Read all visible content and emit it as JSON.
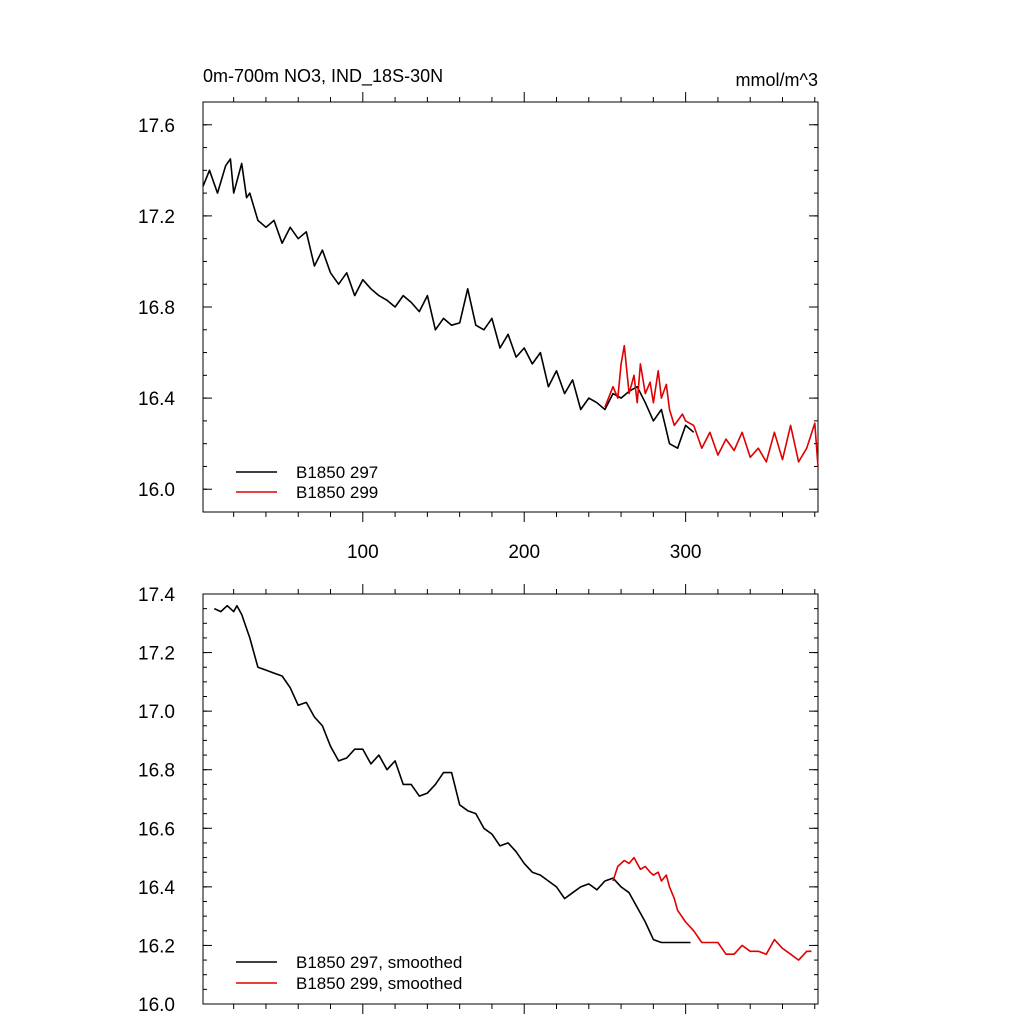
{
  "chart_data": [
    {
      "type": "line",
      "title": "0m-700m NO3, IND_18S-30N",
      "units": "mmol/m^3",
      "xlabel": "",
      "ylabel": "",
      "xlim": [
        1,
        382
      ],
      "ylim": [
        15.9,
        17.7
      ],
      "x_ticks": [
        100,
        200,
        300
      ],
      "y_ticks": [
        16.0,
        16.4,
        16.8,
        17.2,
        17.6
      ],
      "y_tick_labels": [
        "16.0",
        "16.4",
        "16.8",
        "17.2",
        "17.6"
      ],
      "x_tick_labels": [
        "100",
        "200",
        "300"
      ],
      "legend_position": "bottom-left",
      "series": [
        {
          "name": "B1850 297",
          "color": "#000000",
          "x": [
            1,
            5,
            10,
            15,
            18,
            20,
            25,
            28,
            30,
            35,
            40,
            45,
            50,
            55,
            60,
            65,
            70,
            75,
            80,
            85,
            90,
            95,
            100,
            105,
            110,
            115,
            120,
            125,
            130,
            135,
            140,
            145,
            150,
            155,
            160,
            165,
            170,
            175,
            180,
            185,
            190,
            195,
            200,
            205,
            210,
            215,
            220,
            225,
            230,
            235,
            240,
            245,
            250,
            255,
            260,
            265,
            270,
            275,
            280,
            285,
            290,
            295,
            300,
            305
          ],
          "values": [
            17.33,
            17.4,
            17.3,
            17.42,
            17.45,
            17.3,
            17.43,
            17.28,
            17.3,
            17.18,
            17.15,
            17.18,
            17.08,
            17.15,
            17.1,
            17.13,
            16.98,
            17.05,
            16.95,
            16.9,
            16.95,
            16.85,
            16.92,
            16.88,
            16.85,
            16.83,
            16.8,
            16.85,
            16.82,
            16.78,
            16.85,
            16.7,
            16.75,
            16.72,
            16.73,
            16.88,
            16.72,
            16.7,
            16.75,
            16.62,
            16.68,
            16.58,
            16.62,
            16.55,
            16.6,
            16.45,
            16.52,
            16.42,
            16.48,
            16.35,
            16.4,
            16.38,
            16.35,
            16.42,
            16.4,
            16.43,
            16.45,
            16.38,
            16.3,
            16.35,
            16.2,
            16.18,
            16.28,
            16.25
          ]
        },
        {
          "name": "B1850 299",
          "color": "#e00000",
          "x": [
            250,
            255,
            258,
            260,
            262,
            265,
            268,
            270,
            272,
            275,
            278,
            280,
            283,
            285,
            288,
            290,
            293,
            295,
            298,
            300,
            305,
            310,
            315,
            320,
            325,
            330,
            335,
            340,
            345,
            350,
            355,
            360,
            365,
            370,
            375,
            380,
            382
          ],
          "values": [
            16.36,
            16.45,
            16.4,
            16.55,
            16.63,
            16.42,
            16.5,
            16.38,
            16.55,
            16.42,
            16.47,
            16.38,
            16.52,
            16.4,
            16.46,
            16.35,
            16.28,
            16.3,
            16.33,
            16.3,
            16.28,
            16.18,
            16.25,
            16.15,
            16.22,
            16.17,
            16.25,
            16.14,
            16.18,
            16.12,
            16.25,
            16.13,
            16.28,
            16.12,
            16.18,
            16.29,
            16.1
          ]
        }
      ]
    },
    {
      "type": "line",
      "title": "",
      "xlabel": "",
      "ylabel": "",
      "xlim": [
        1,
        382
      ],
      "ylim": [
        16.0,
        17.4
      ],
      "x_ticks": [
        100,
        200,
        300
      ],
      "y_ticks": [
        16.0,
        16.2,
        16.4,
        16.6,
        16.8,
        17.0,
        17.2,
        17.4
      ],
      "y_tick_labels": [
        "16.0",
        "16.2",
        "16.4",
        "16.6",
        "16.8",
        "17.0",
        "17.2",
        "17.4"
      ],
      "legend_position": "bottom-left",
      "series": [
        {
          "name": "B1850 297, smoothed",
          "color": "#000000",
          "x": [
            8,
            12,
            16,
            20,
            22,
            25,
            30,
            35,
            40,
            45,
            50,
            55,
            60,
            65,
            70,
            75,
            80,
            85,
            90,
            95,
            100,
            105,
            110,
            115,
            120,
            125,
            130,
            135,
            140,
            145,
            150,
            155,
            160,
            165,
            170,
            175,
            180,
            185,
            190,
            195,
            200,
            205,
            210,
            215,
            220,
            225,
            230,
            235,
            240,
            245,
            250,
            255,
            260,
            265,
            270,
            275,
            280,
            285,
            290,
            295,
            300,
            303
          ],
          "values": [
            17.35,
            17.34,
            17.36,
            17.34,
            17.36,
            17.33,
            17.25,
            17.15,
            17.14,
            17.13,
            17.12,
            17.08,
            17.02,
            17.03,
            16.98,
            16.95,
            16.88,
            16.83,
            16.84,
            16.87,
            16.87,
            16.82,
            16.85,
            16.8,
            16.83,
            16.75,
            16.75,
            16.71,
            16.72,
            16.75,
            16.79,
            16.79,
            16.68,
            16.66,
            16.65,
            16.6,
            16.58,
            16.54,
            16.55,
            16.52,
            16.48,
            16.45,
            16.44,
            16.42,
            16.4,
            16.36,
            16.38,
            16.4,
            16.41,
            16.39,
            16.42,
            16.43,
            16.4,
            16.38,
            16.33,
            16.28,
            16.22,
            16.21,
            16.21,
            16.21,
            16.21,
            16.21
          ]
        },
        {
          "name": "B1850 299, smoothed",
          "color": "#e00000",
          "x": [
            255,
            258,
            262,
            265,
            268,
            272,
            275,
            278,
            280,
            283,
            285,
            288,
            290,
            293,
            295,
            300,
            305,
            310,
            315,
            320,
            325,
            330,
            335,
            340,
            345,
            350,
            355,
            360,
            365,
            370,
            375,
            378
          ],
          "values": [
            16.42,
            16.47,
            16.49,
            16.48,
            16.5,
            16.46,
            16.47,
            16.45,
            16.44,
            16.45,
            16.42,
            16.44,
            16.4,
            16.36,
            16.32,
            16.28,
            16.25,
            16.21,
            16.21,
            16.21,
            16.17,
            16.17,
            16.2,
            16.18,
            16.18,
            16.17,
            16.22,
            16.19,
            16.17,
            16.15,
            16.18,
            16.18
          ]
        }
      ]
    }
  ]
}
